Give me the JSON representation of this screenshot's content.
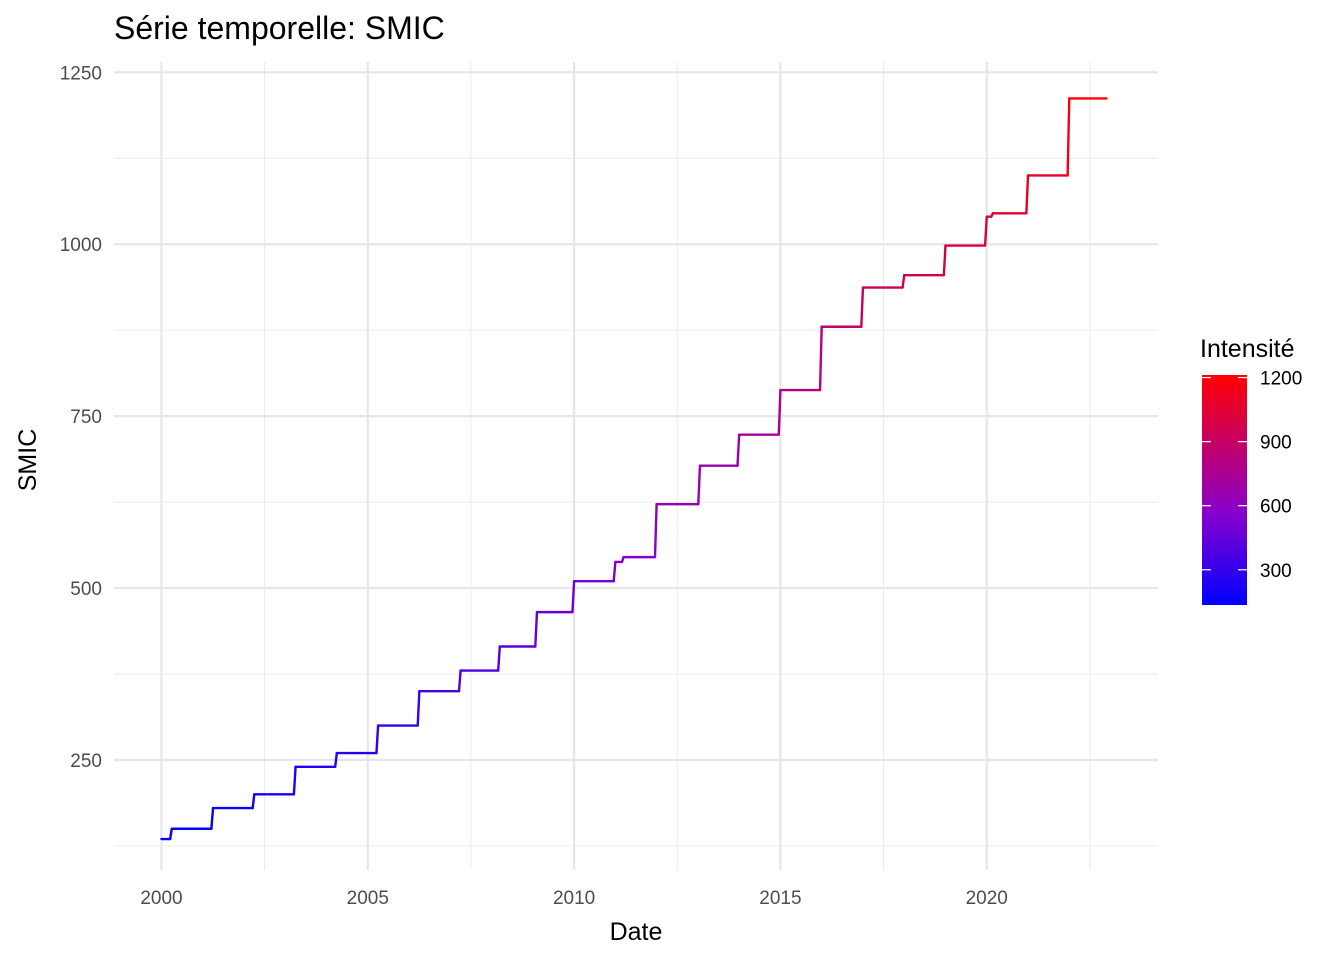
{
  "chart_data": {
    "type": "line",
    "title": "Série temporelle:  SMIC",
    "xlabel": "Date",
    "ylabel": "SMIC",
    "xlim": [
      1998.85,
      2024.15
    ],
    "ylim": [
      90,
      1265
    ],
    "x_ticks": [
      2000,
      2005,
      2010,
      2015,
      2020
    ],
    "x_tick_labels": [
      "2000",
      "2005",
      "2010",
      "2015",
      "2020"
    ],
    "y_ticks": [
      250,
      500,
      750,
      1000,
      1250
    ],
    "y_tick_labels": [
      "250",
      "500",
      "750",
      "1000",
      "1250"
    ],
    "grid": true,
    "legend": {
      "title": "Intensité",
      "placement": "right",
      "low_color": "#0000ff",
      "high_color": "#ff0000",
      "range": [
        135,
        1212
      ],
      "ticks": [
        300,
        600,
        900,
        1200
      ],
      "tick_labels": [
        "300",
        "600",
        "900",
        "1200"
      ]
    },
    "steps": [
      {
        "date": 2000.0,
        "value": 135
      },
      {
        "date": 2000.25,
        "value": 150
      },
      {
        "date": 2001.25,
        "value": 180
      },
      {
        "date": 2002.25,
        "value": 200
      },
      {
        "date": 2003.25,
        "value": 240
      },
      {
        "date": 2004.25,
        "value": 260
      },
      {
        "date": 2005.25,
        "value": 300
      },
      {
        "date": 2006.25,
        "value": 350
      },
      {
        "date": 2007.25,
        "value": 380
      },
      {
        "date": 2008.2,
        "value": 415
      },
      {
        "date": 2009.1,
        "value": 465
      },
      {
        "date": 2010.0,
        "value": 510
      },
      {
        "date": 2011.0,
        "value": 538
      },
      {
        "date": 2011.2,
        "value": 545
      },
      {
        "date": 2012.0,
        "value": 622
      },
      {
        "date": 2013.05,
        "value": 678
      },
      {
        "date": 2014.0,
        "value": 723
      },
      {
        "date": 2015.0,
        "value": 788
      },
      {
        "date": 2016.0,
        "value": 880
      },
      {
        "date": 2017.0,
        "value": 937
      },
      {
        "date": 2018.0,
        "value": 955
      },
      {
        "date": 2019.0,
        "value": 998
      },
      {
        "date": 2020.0,
        "value": 1040
      },
      {
        "date": 2020.15,
        "value": 1045
      },
      {
        "date": 2021.0,
        "value": 1100
      },
      {
        "date": 2022.0,
        "value": 1212
      }
    ],
    "end_date": 2022.9
  }
}
